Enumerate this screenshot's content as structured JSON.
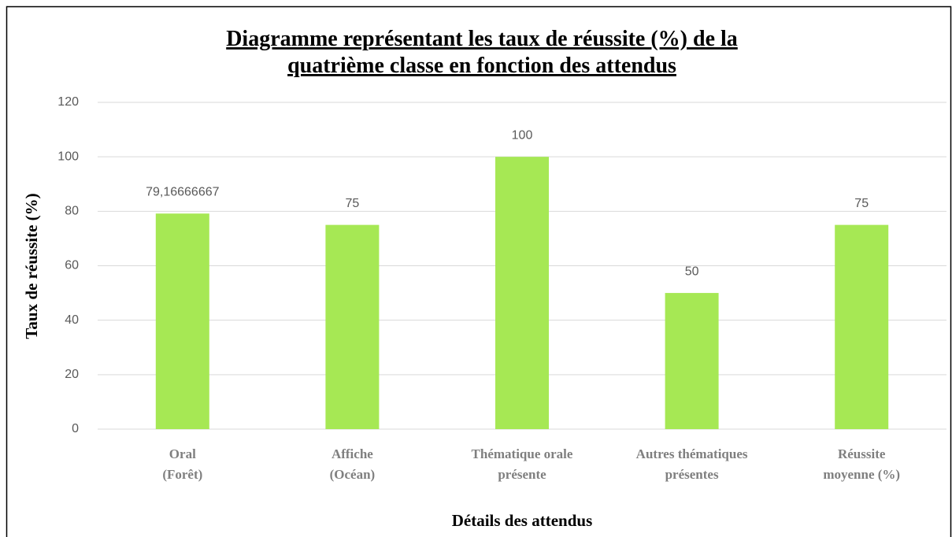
{
  "chart_data": {
    "type": "bar",
    "title": "Diagramme représentant les taux de réussite (%) de la\nquatrième classe en fonction des attendus",
    "x_label": "Détails des attendus",
    "y_label": "Taux de réussite (%)",
    "categories": [
      "Oral\n(Forêt)",
      "Affiche\n(Océan)",
      "Thématique orale\nprésente",
      "Autres thématiques\nprésentes",
      "Réussite\nmoyenne (%)"
    ],
    "values": [
      79.16666667,
      75,
      100,
      50,
      75
    ],
    "value_labels": [
      "79,16666667",
      "75",
      "100",
      "50",
      "75"
    ],
    "color": "#a6e854",
    "ylim": [
      0,
      120
    ],
    "yticks": [
      0,
      20,
      40,
      60,
      80,
      100,
      120
    ],
    "grid": true
  }
}
